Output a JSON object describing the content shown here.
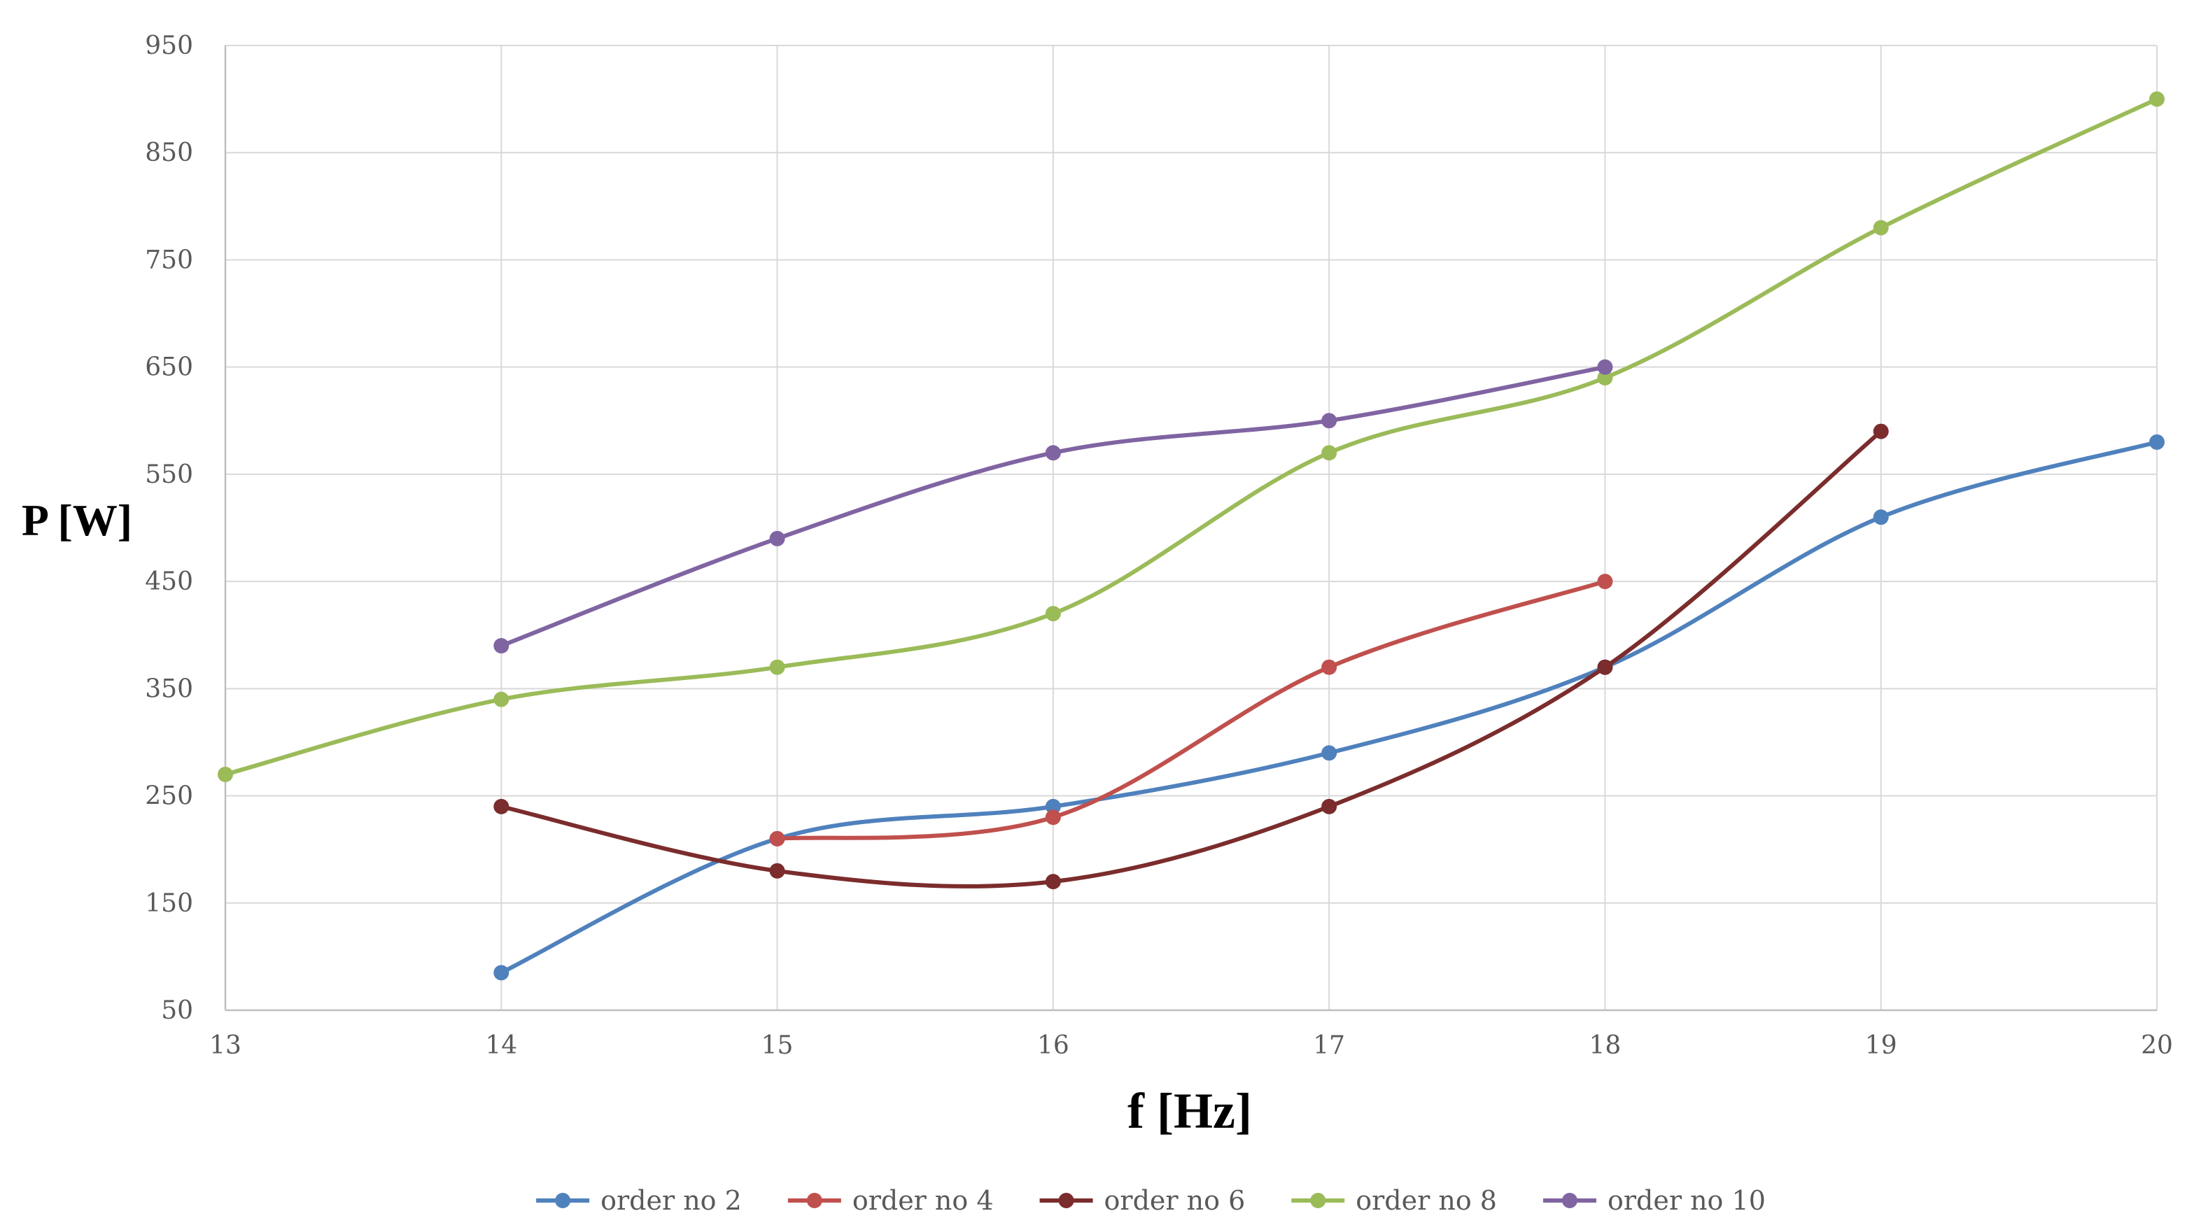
{
  "chart_data": {
    "type": "line",
    "smooth": true,
    "title": "",
    "xlabel": "f [Hz]",
    "ylabel": "P [W]",
    "xlim": [
      13,
      20
    ],
    "ylim": [
      50,
      950
    ],
    "x_ticks": [
      13,
      14,
      15,
      16,
      17,
      18,
      19,
      20
    ],
    "y_ticks": [
      50,
      150,
      250,
      350,
      450,
      550,
      650,
      750,
      850,
      950
    ],
    "grid": true,
    "legend_position": "bottom",
    "series": [
      {
        "name": "order no 2",
        "color": "#4f81bd",
        "points": [
          [
            14,
            85
          ],
          [
            15,
            210
          ],
          [
            16,
            240
          ],
          [
            17,
            290
          ],
          [
            18,
            370
          ],
          [
            19,
            510
          ],
          [
            20,
            580
          ]
        ]
      },
      {
        "name": "order no 4",
        "color": "#c0504d",
        "points": [
          [
            15,
            210
          ],
          [
            16,
            230
          ],
          [
            17,
            370
          ],
          [
            18,
            450
          ]
        ]
      },
      {
        "name": "order no 6",
        "color": "#7b2c2c",
        "points": [
          [
            14,
            240
          ],
          [
            15,
            180
          ],
          [
            16,
            170
          ],
          [
            17,
            240
          ],
          [
            18,
            370
          ],
          [
            19,
            590
          ]
        ]
      },
      {
        "name": "order no 8",
        "color": "#9bbb59",
        "points": [
          [
            13,
            270
          ],
          [
            14,
            340
          ],
          [
            15,
            370
          ],
          [
            16,
            420
          ],
          [
            17,
            570
          ],
          [
            18,
            640
          ],
          [
            19,
            780
          ],
          [
            20,
            900
          ]
        ]
      },
      {
        "name": "order no 10",
        "color": "#8064a2",
        "points": [
          [
            14,
            390
          ],
          [
            15,
            490
          ],
          [
            16,
            570
          ],
          [
            17,
            600
          ],
          [
            18,
            650
          ]
        ]
      }
    ]
  }
}
